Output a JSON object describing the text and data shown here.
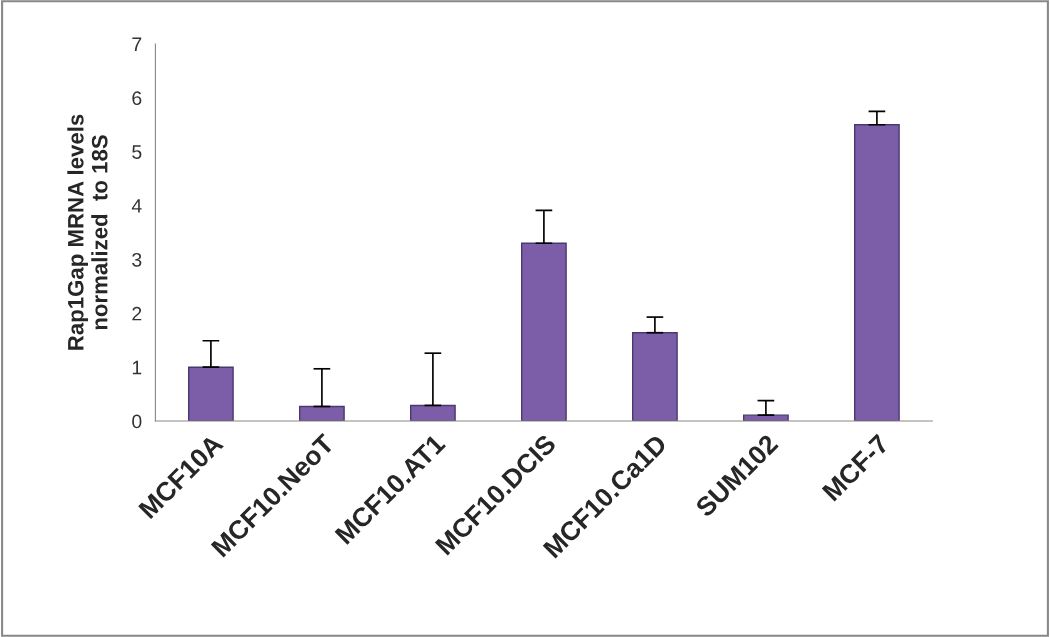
{
  "chart_data": {
    "type": "bar",
    "ylabel": "Rap1Gap MRNA levels\nnormalized  to 18S",
    "categories": [
      "MCF10A",
      "MCF10.NeoT",
      "MCF10.AT1",
      "MCF10.DCIS",
      "MCF10.Ca1D",
      "SUM102",
      "MCF-7"
    ],
    "values": [
      1.0,
      0.27,
      0.29,
      3.3,
      1.64,
      0.11,
      5.5
    ],
    "errors": [
      [
        1.0,
        1.49
      ],
      [
        0.27,
        0.97
      ],
      [
        0.29,
        1.26
      ],
      [
        3.3,
        3.91
      ],
      [
        1.64,
        1.93
      ],
      [
        0.11,
        0.38
      ],
      [
        5.5,
        5.75
      ]
    ],
    "color": "#7b5ea7",
    "ylim": [
      0,
      7
    ],
    "yticks": [
      0,
      1,
      2,
      3,
      4,
      5,
      6,
      7
    ],
    "grid": false,
    "legend": false
  }
}
